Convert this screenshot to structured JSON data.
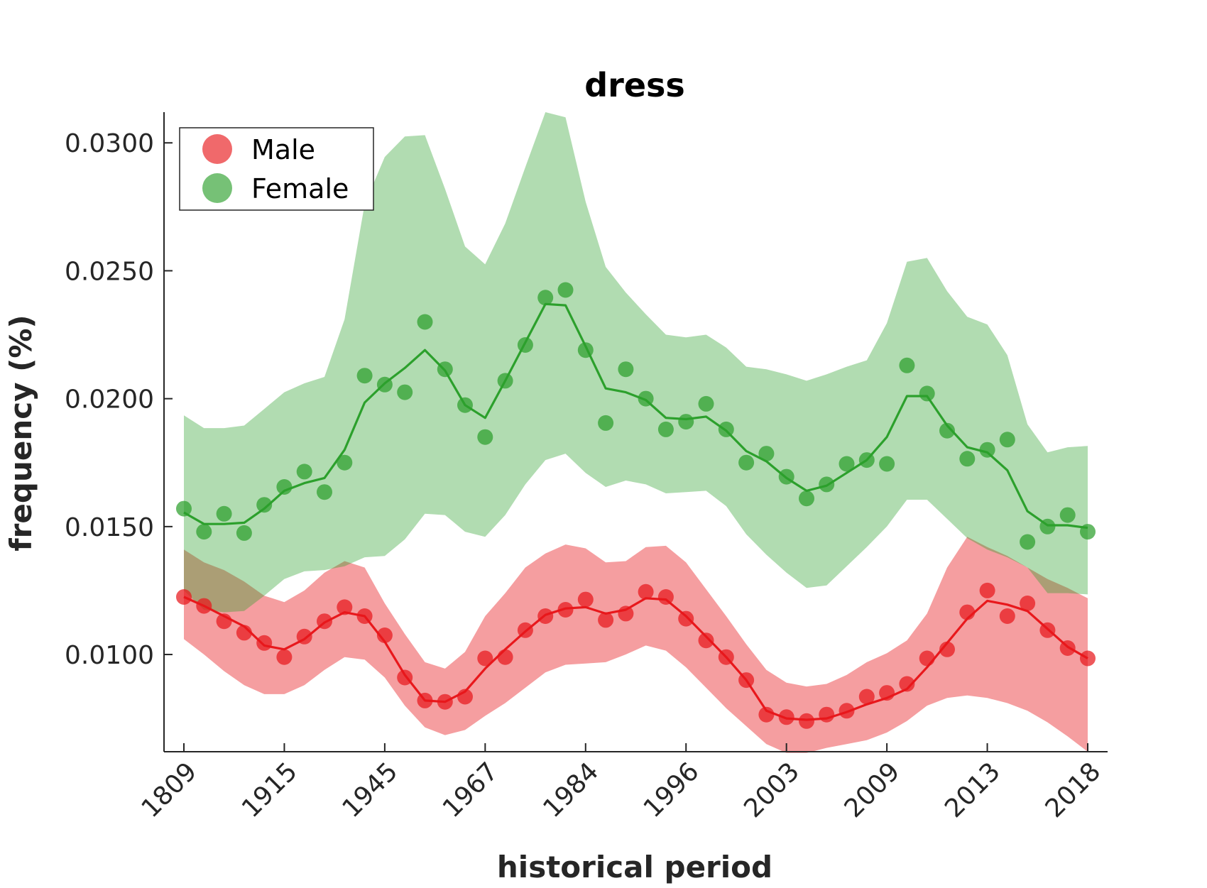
{
  "chart_data": {
    "type": "line",
    "title": "dress",
    "xlabel": "historical period",
    "ylabel": "frequency (%)",
    "x_tick_labels": [
      "1809",
      "1915",
      "1945",
      "1967",
      "1984",
      "1996",
      "2003",
      "2009",
      "2013",
      "2018"
    ],
    "y_tick_labels": [
      "0.0100",
      "0.0150",
      "0.0200",
      "0.0250",
      "0.0300"
    ],
    "y_ticks": [
      0.01,
      0.015,
      0.02,
      0.025,
      0.03
    ],
    "ylim": [
      0.0062,
      0.0312
    ],
    "x_index_range": [
      0,
      45
    ],
    "x_tick_index_step": 5,
    "grid": false,
    "legend_position": "top-left",
    "series": [
      {
        "name": "Male",
        "color": "#e8181c",
        "band_color": "#f09b9d",
        "points": [
          0.01225,
          0.0119,
          0.0113,
          0.01085,
          0.01045,
          0.0099,
          0.0107,
          0.0113,
          0.01185,
          0.0115,
          0.01075,
          0.0091,
          0.0082,
          0.00815,
          0.00835,
          0.00985,
          0.0099,
          0.01095,
          0.0115,
          0.01175,
          0.01215,
          0.01135,
          0.0116,
          0.01245,
          0.01225,
          0.0114,
          0.01055,
          0.0099,
          0.009,
          0.00765,
          0.00755,
          0.0074,
          0.00765,
          0.0078,
          0.00835,
          0.0085,
          0.00885,
          0.00985,
          0.0102,
          0.01165,
          0.0125,
          0.0115,
          0.012,
          0.01095,
          0.01025,
          0.00985
        ],
        "line": [
          0.01225,
          0.0119,
          0.0115,
          0.0111,
          0.01035,
          0.0102,
          0.0106,
          0.01125,
          0.01165,
          0.0115,
          0.0105,
          0.0092,
          0.0082,
          0.00815,
          0.00855,
          0.00945,
          0.0102,
          0.0109,
          0.01155,
          0.0118,
          0.01185,
          0.0116,
          0.01175,
          0.0122,
          0.01215,
          0.0115,
          0.0107,
          0.0099,
          0.009,
          0.0078,
          0.0075,
          0.00745,
          0.0075,
          0.00775,
          0.00805,
          0.0083,
          0.00865,
          0.0095,
          0.01045,
          0.0114,
          0.0121,
          0.01195,
          0.0117,
          0.011,
          0.0103,
          0.00985
        ],
        "band_lower": [
          0.0106,
          0.01,
          0.00935,
          0.0088,
          0.00845,
          0.00845,
          0.0088,
          0.0094,
          0.0099,
          0.0098,
          0.0091,
          0.008,
          0.00715,
          0.00685,
          0.00705,
          0.0076,
          0.0081,
          0.0087,
          0.0093,
          0.0096,
          0.00965,
          0.0097,
          0.01,
          0.01035,
          0.01015,
          0.0095,
          0.0087,
          0.0079,
          0.0072,
          0.0065,
          0.00615,
          0.00615,
          0.00635,
          0.0065,
          0.00665,
          0.00695,
          0.0074,
          0.008,
          0.0083,
          0.0084,
          0.0083,
          0.0081,
          0.0078,
          0.00735,
          0.0068,
          0.0062
        ],
        "band_upper": [
          0.0141,
          0.0136,
          0.0133,
          0.01285,
          0.0123,
          0.01205,
          0.0125,
          0.0132,
          0.01365,
          0.0134,
          0.012,
          0.0108,
          0.0097,
          0.00945,
          0.0101,
          0.0115,
          0.0124,
          0.0134,
          0.01395,
          0.0143,
          0.01415,
          0.0136,
          0.01365,
          0.0142,
          0.01425,
          0.0136,
          0.01255,
          0.0115,
          0.0104,
          0.0094,
          0.0089,
          0.00875,
          0.00885,
          0.0092,
          0.0097,
          0.01005,
          0.01055,
          0.0116,
          0.0134,
          0.0146,
          0.0142,
          0.01385,
          0.0134,
          0.01295,
          0.0126,
          0.0122
        ]
      },
      {
        "name": "Female",
        "color": "#2ca02c",
        "band_color": "#b0d9aa",
        "points": [
          0.0157,
          0.0148,
          0.0155,
          0.01475,
          0.01585,
          0.01655,
          0.01715,
          0.01635,
          0.0175,
          0.0209,
          0.02055,
          0.02025,
          0.023,
          0.02115,
          0.01975,
          0.0185,
          0.0207,
          0.0221,
          0.02395,
          0.02425,
          0.0219,
          0.01905,
          0.02115,
          0.02,
          0.0188,
          0.0191,
          0.0198,
          0.0188,
          0.0175,
          0.01785,
          0.01695,
          0.0161,
          0.01665,
          0.01745,
          0.0176,
          0.01745,
          0.0213,
          0.0202,
          0.01875,
          0.01765,
          0.018,
          0.0184,
          0.0144,
          0.015,
          0.01545,
          0.0148
        ],
        "line": [
          0.01555,
          0.0151,
          0.0151,
          0.01515,
          0.0157,
          0.0164,
          0.0167,
          0.0169,
          0.018,
          0.01985,
          0.0206,
          0.0212,
          0.0219,
          0.0211,
          0.01975,
          0.01925,
          0.0207,
          0.0222,
          0.0237,
          0.02365,
          0.02205,
          0.0204,
          0.02025,
          0.01995,
          0.01925,
          0.0192,
          0.0193,
          0.01875,
          0.01795,
          0.01755,
          0.0169,
          0.0164,
          0.0166,
          0.0171,
          0.0176,
          0.0185,
          0.0201,
          0.0201,
          0.01895,
          0.0181,
          0.0179,
          0.0172,
          0.0156,
          0.01505,
          0.01505,
          0.01495
        ],
        "band_lower": [
          0.0125,
          0.01175,
          0.01165,
          0.0117,
          0.0123,
          0.01295,
          0.01325,
          0.0133,
          0.01345,
          0.0138,
          0.01385,
          0.0145,
          0.0155,
          0.01545,
          0.0148,
          0.0146,
          0.01545,
          0.01665,
          0.0176,
          0.01785,
          0.0171,
          0.01655,
          0.0168,
          0.01665,
          0.0163,
          0.01635,
          0.0164,
          0.0158,
          0.0147,
          0.0139,
          0.0132,
          0.0126,
          0.0127,
          0.01345,
          0.0142,
          0.015,
          0.01605,
          0.01605,
          0.0153,
          0.01455,
          0.0141,
          0.0138,
          0.0134,
          0.0124,
          0.0124,
          0.01235
        ],
        "band_upper": [
          0.01935,
          0.01885,
          0.01885,
          0.01895,
          0.0196,
          0.02025,
          0.0206,
          0.02085,
          0.0231,
          0.0276,
          0.02945,
          0.03025,
          0.0303,
          0.0282,
          0.02595,
          0.02525,
          0.02685,
          0.02905,
          0.0312,
          0.031,
          0.0277,
          0.02515,
          0.02415,
          0.0233,
          0.0225,
          0.0224,
          0.0225,
          0.022,
          0.02125,
          0.02115,
          0.02095,
          0.0207,
          0.02095,
          0.02125,
          0.0215,
          0.02295,
          0.02535,
          0.0255,
          0.0242,
          0.0232,
          0.0229,
          0.0217,
          0.019,
          0.0179,
          0.0181,
          0.01815
        ]
      }
    ]
  }
}
